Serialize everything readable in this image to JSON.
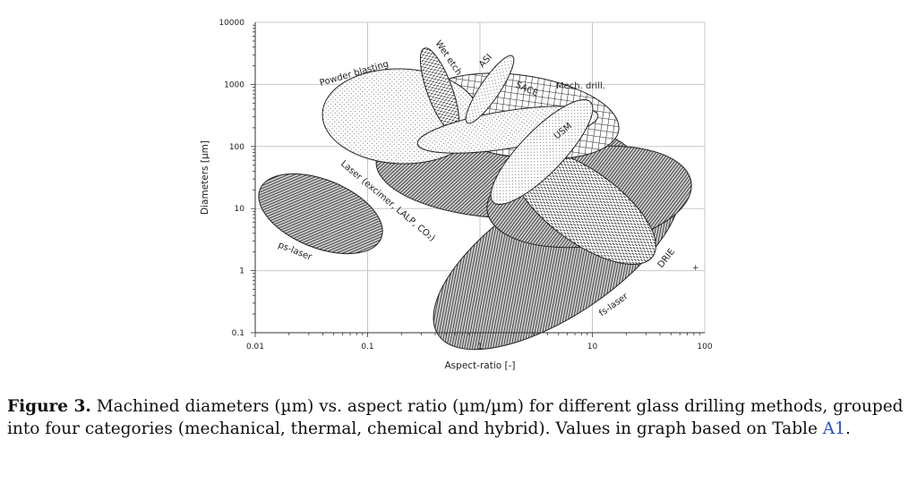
{
  "chart_data": {
    "type": "scatter",
    "xlabel": "Aspect-ratio [-]",
    "ylabel": "Diameters [µm]",
    "xscale": "log",
    "yscale": "log",
    "xlim": [
      0.01,
      100
    ],
    "ylim": [
      0.1,
      10000
    ],
    "xticks": [
      "0.01",
      "0.1",
      "1",
      "10",
      "100"
    ],
    "yticks": [
      "0.1",
      "1",
      "10",
      "100",
      "1000",
      "10000"
    ],
    "grid": true,
    "regions": [
      {
        "name": "ps-laser",
        "center": [
          0.06,
          10
        ],
        "pattern": "diag"
      },
      {
        "name": "Laser (excimer, LALP, CO₂)",
        "center": [
          3.2,
          30
        ],
        "pattern": "diag"
      },
      {
        "name": "fs-laser",
        "center": [
          7,
          1.6
        ],
        "pattern": "diag"
      },
      {
        "name": "DRIE",
        "center": [
          18,
          10
        ],
        "pattern": "diag"
      },
      {
        "name": "SACE",
        "center": [
          2.5,
          250
        ],
        "pattern": "grid"
      },
      {
        "name": "Powder blasting",
        "center": [
          0.7,
          300
        ],
        "pattern": "dots"
      },
      {
        "name": "Mech. drill.",
        "center": [
          5,
          250
        ],
        "pattern": "dots"
      },
      {
        "name": "USM",
        "center": [
          4,
          12
        ],
        "pattern": "dash"
      },
      {
        "name": "Wet etch",
        "center": [
          0.42,
          500
        ],
        "pattern": "dash"
      },
      {
        "name": "ASI",
        "center": [
          1.4,
          420
        ],
        "pattern": "dots"
      }
    ]
  },
  "caption": {
    "label": "Figure 3.",
    "text": " Machined diameters (µm) vs. aspect ratio (µm/µm) for different glass drilling methods, grouped into four categories (mechanical, thermal, chemical and hybrid). Values in graph based on Table ",
    "ref": "A1",
    "end": "."
  }
}
